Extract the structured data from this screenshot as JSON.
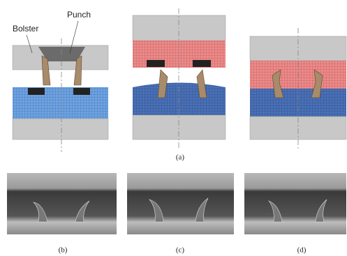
{
  "labels": {
    "bolster": "Bolster",
    "punch": "Punch"
  },
  "captions": {
    "a": "(a)",
    "b": "(b)",
    "c": "(c)",
    "d": "(d)"
  }
}
